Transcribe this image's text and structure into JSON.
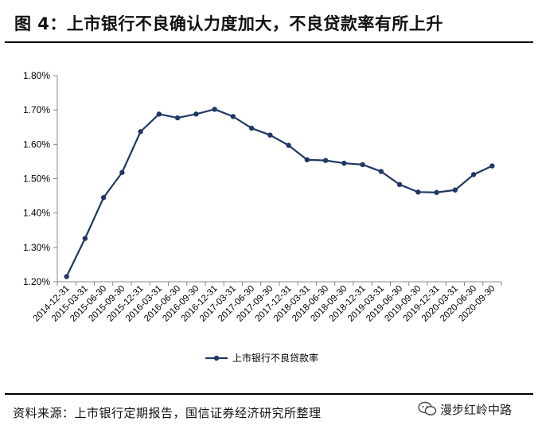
{
  "header": {
    "title": "图 4：上市银行不良确认力度加大，不良贷款率有所上升"
  },
  "footer": {
    "source": "资料来源：上市银行定期报告，国信证券经济研究所整理",
    "watermark": "漫步红岭中路"
  },
  "colors": {
    "series": "#1f3864",
    "axis": "#888888"
  },
  "chart_data": {
    "type": "line",
    "title": "",
    "xlabel": "",
    "ylabel": "",
    "ylim": [
      1.2,
      1.8
    ],
    "yticks": [
      "1.20%",
      "1.30%",
      "1.40%",
      "1.50%",
      "1.60%",
      "1.70%",
      "1.80%"
    ],
    "grid": false,
    "legend_position": "bottom",
    "categories": [
      "2014-12-31",
      "2015-03-31",
      "2015-06-30",
      "2015-09-30",
      "2015-12-31",
      "2016-03-31",
      "2016-06-30",
      "2016-09-30",
      "2016-12-31",
      "2017-03-31",
      "2017-06-30",
      "2017-09-30",
      "2017-12-31",
      "2018-03-31",
      "2018-06-30",
      "2018-09-30",
      "2018-12-31",
      "2019-03-31",
      "2019-06-30",
      "2019-09-30",
      "2019-12-31",
      "2020-03-31",
      "2020-06-30",
      "2020-09-30"
    ],
    "series": [
      {
        "name": "上市银行不良贷款率",
        "values": [
          1.215,
          1.326,
          1.445,
          1.518,
          1.637,
          1.688,
          1.677,
          1.688,
          1.702,
          1.681,
          1.647,
          1.627,
          1.597,
          1.555,
          1.553,
          1.545,
          1.541,
          1.521,
          1.483,
          1.461,
          1.46,
          1.467,
          1.512,
          1.537
        ]
      }
    ]
  }
}
